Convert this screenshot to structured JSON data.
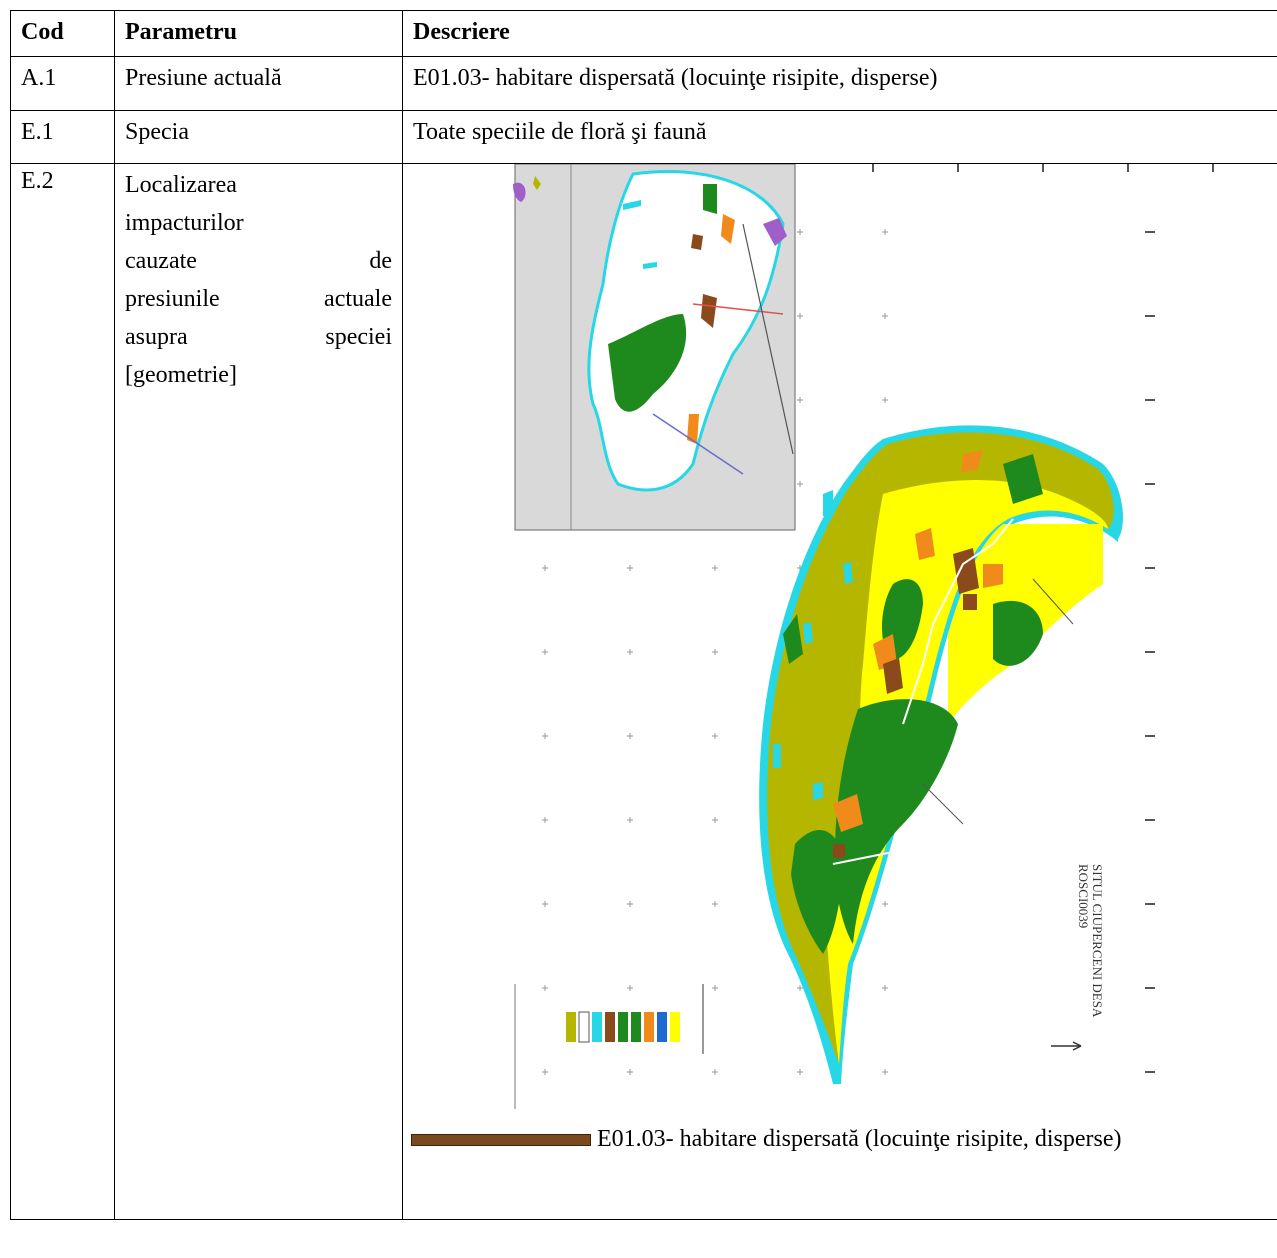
{
  "table": {
    "headers": [
      "Cod",
      "Parametru",
      "Descriere"
    ],
    "rows": [
      {
        "code": "A.1",
        "param": "Presiune actuală",
        "desc": "E01.03- habitare dispersată (locuinţe risipite, disperse)"
      },
      {
        "code": "E.1",
        "param": "Specia",
        "desc": "Toate speciile de floră şi faună"
      },
      {
        "code": "E.2",
        "param_lines": [
          "Localizarea",
          "impacturilor",
          "cauzate de",
          "presiunile actuale",
          "asupra speciei",
          "[geometrie]"
        ],
        "map": {
          "site_title": "SITUL CIUPERCENI DESA",
          "site_code": "ROSCI0039",
          "colors": {
            "yellow": "#ffff00",
            "olive": "#b5b600",
            "green": "#1e8a1e",
            "brown": "#8b4a1c",
            "orange": "#f08a1a",
            "cyan": "#27d7e6",
            "purple": "#a05ec8",
            "gray": "#d9d9d9"
          }
        },
        "legend_text": "E01.03- habitare dispersată (locuinţe risipite, disperse)"
      }
    ]
  }
}
